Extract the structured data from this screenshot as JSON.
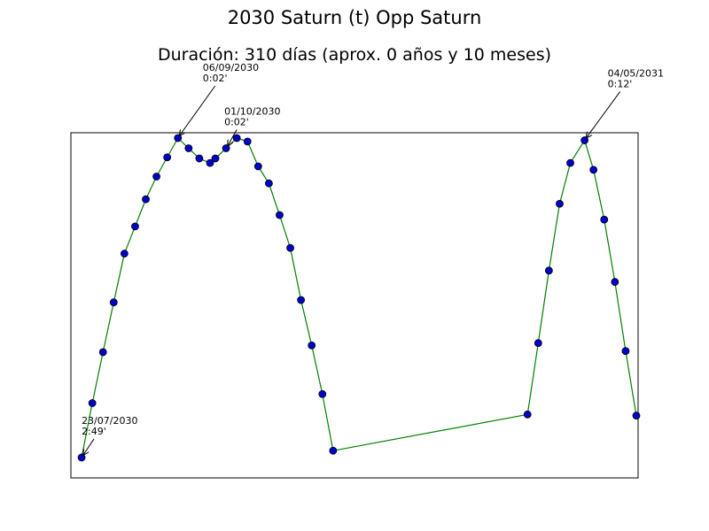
{
  "title": "2030 Saturn (t) Opp Saturn",
  "subtitle": "Duración: 310 días (aprox. 0 años y 10 meses)",
  "colors": {
    "line": "#008000",
    "marker_fill": "#0000cc",
    "marker_edge": "#000000",
    "frame": "#000000"
  },
  "chart_data": {
    "type": "line",
    "title": "2030 Saturn (t) Opp Saturn",
    "subtitle": "Duración: 310 días (aprox. 0 años y 10 meses)",
    "xlabel": "",
    "ylabel": "",
    "x_ticks_visible": false,
    "y_ticks_visible": false,
    "grid": false,
    "legend": "none",
    "ylim": [
      0,
      3.0
    ],
    "ylim_note": "orb in degrees (lower = closer to exact); axis not printed",
    "series": [
      {
        "x": [
          "2030-07-23",
          "2030-07-29",
          "2030-08-04",
          "2030-08-10",
          "2030-08-16",
          "2030-08-22",
          "2030-08-28",
          "2030-09-03",
          "2030-09-09",
          "2030-09-15",
          "2030-09-21",
          "2030-09-27",
          "2030-10-03",
          "2030-10-06",
          "2030-10-12",
          "2030-10-18",
          "2030-10-24",
          "2030-10-30",
          "2030-11-05",
          "2030-11-11",
          "2030-11-17",
          "2030-11-23",
          "2030-11-29",
          "2030-12-05",
          "2030-12-11",
          "2031-03-30",
          "2031-04-05",
          "2031-04-11",
          "2031-04-17",
          "2031-04-23",
          "2031-05-01",
          "2031-05-06",
          "2031-05-12",
          "2031-05-18",
          "2031-05-24",
          "2031-05-30"
        ],
        "values": [
          2.82,
          2.34,
          1.89,
          1.45,
          1.02,
          0.78,
          0.54,
          0.34,
          0.17,
          0.0,
          0.09,
          0.18,
          0.22,
          0.18,
          0.09,
          0.0,
          0.03,
          0.25,
          0.4,
          0.68,
          0.97,
          1.43,
          1.83,
          2.26,
          2.76,
          2.44,
          1.81,
          1.17,
          0.58,
          0.22,
          0.02,
          0.28,
          0.72,
          1.27,
          1.88,
          2.45
        ]
      }
    ],
    "annotations": [
      {
        "date": "23/07/2030",
        "orb": "2:49'",
        "point": 0
      },
      {
        "date": "06/09/2030",
        "orb": "0:02'",
        "point": 9
      },
      {
        "date": "01/10/2030",
        "orb": "0:02'",
        "point": 14
      },
      {
        "date": "04/05/2031",
        "orb": "0:12'",
        "point": 30
      }
    ]
  }
}
